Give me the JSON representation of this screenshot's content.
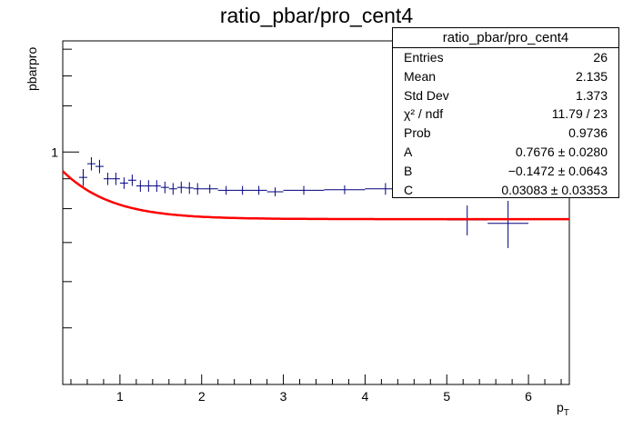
{
  "chart_data": {
    "type": "scatter",
    "title": "ratio_pbar/pro_cent4",
    "xlabel": "p_T",
    "ylabel": "pbarpro",
    "xlim": [
      0.3,
      6.5
    ],
    "ylim": [
      0.4,
      1.55
    ],
    "yscale": "log",
    "xticks": [
      1,
      2,
      3,
      4,
      5,
      6
    ],
    "yticks": [
      1
    ],
    "points": [
      {
        "x": 0.55,
        "xerr": 0.05,
        "y": 0.905,
        "yerr": 0.03
      },
      {
        "x": 0.65,
        "xerr": 0.05,
        "y": 0.955,
        "yerr": 0.025
      },
      {
        "x": 0.75,
        "xerr": 0.05,
        "y": 0.945,
        "yerr": 0.025
      },
      {
        "x": 0.85,
        "xerr": 0.05,
        "y": 0.9,
        "yerr": 0.022
      },
      {
        "x": 0.95,
        "xerr": 0.05,
        "y": 0.9,
        "yerr": 0.022
      },
      {
        "x": 1.05,
        "xerr": 0.05,
        "y": 0.885,
        "yerr": 0.02
      },
      {
        "x": 1.15,
        "xerr": 0.05,
        "y": 0.895,
        "yerr": 0.02
      },
      {
        "x": 1.25,
        "xerr": 0.05,
        "y": 0.875,
        "yerr": 0.02
      },
      {
        "x": 1.35,
        "xerr": 0.05,
        "y": 0.875,
        "yerr": 0.02
      },
      {
        "x": 1.45,
        "xerr": 0.05,
        "y": 0.875,
        "yerr": 0.02
      },
      {
        "x": 1.55,
        "xerr": 0.05,
        "y": 0.87,
        "yerr": 0.02
      },
      {
        "x": 1.65,
        "xerr": 0.05,
        "y": 0.865,
        "yerr": 0.02
      },
      {
        "x": 1.75,
        "xerr": 0.05,
        "y": 0.87,
        "yerr": 0.02
      },
      {
        "x": 1.85,
        "xerr": 0.05,
        "y": 0.868,
        "yerr": 0.02
      },
      {
        "x": 1.95,
        "xerr": 0.05,
        "y": 0.865,
        "yerr": 0.02
      },
      {
        "x": 2.1,
        "xerr": 0.1,
        "y": 0.865,
        "yerr": 0.015
      },
      {
        "x": 2.3,
        "xerr": 0.1,
        "y": 0.86,
        "yerr": 0.015
      },
      {
        "x": 2.5,
        "xerr": 0.1,
        "y": 0.86,
        "yerr": 0.015
      },
      {
        "x": 2.7,
        "xerr": 0.1,
        "y": 0.86,
        "yerr": 0.015
      },
      {
        "x": 2.9,
        "xerr": 0.1,
        "y": 0.855,
        "yerr": 0.015
      },
      {
        "x": 3.25,
        "xerr": 0.25,
        "y": 0.86,
        "yerr": 0.015
      },
      {
        "x": 3.75,
        "xerr": 0.25,
        "y": 0.862,
        "yerr": 0.015
      },
      {
        "x": 4.25,
        "xerr": 0.25,
        "y": 0.865,
        "yerr": 0.02
      },
      {
        "x": 4.75,
        "xerr": 0.25,
        "y": 0.915,
        "yerr": 0.025
      },
      {
        "x": 5.25,
        "xerr": 0.25,
        "y": 0.765,
        "yerr": 0.045
      },
      {
        "x": 5.75,
        "xerr": 0.25,
        "y": 0.755,
        "yerr": 0.07
      }
    ],
    "fit": {
      "color": "#ff0000",
      "A": 0.7676,
      "B": -0.1472,
      "C": 0.03083
    },
    "marker_color": "#00007f"
  },
  "stats_box": {
    "title": "ratio_pbar/pro_cent4",
    "rows": [
      {
        "label": "Entries",
        "value": "26"
      },
      {
        "label": "Mean",
        "value": "2.135"
      },
      {
        "label": "Std Dev",
        "value": "1.373"
      },
      {
        "label": "χ² / ndf",
        "value": "11.79 / 23"
      },
      {
        "label": "Prob",
        "value": "0.9736"
      },
      {
        "label": "A",
        "value": "0.7676 ± 0.0280"
      },
      {
        "label": "B",
        "value": "−0.1472 ± 0.0643"
      },
      {
        "label": "C",
        "value": "0.03083 ± 0.03353"
      }
    ]
  }
}
